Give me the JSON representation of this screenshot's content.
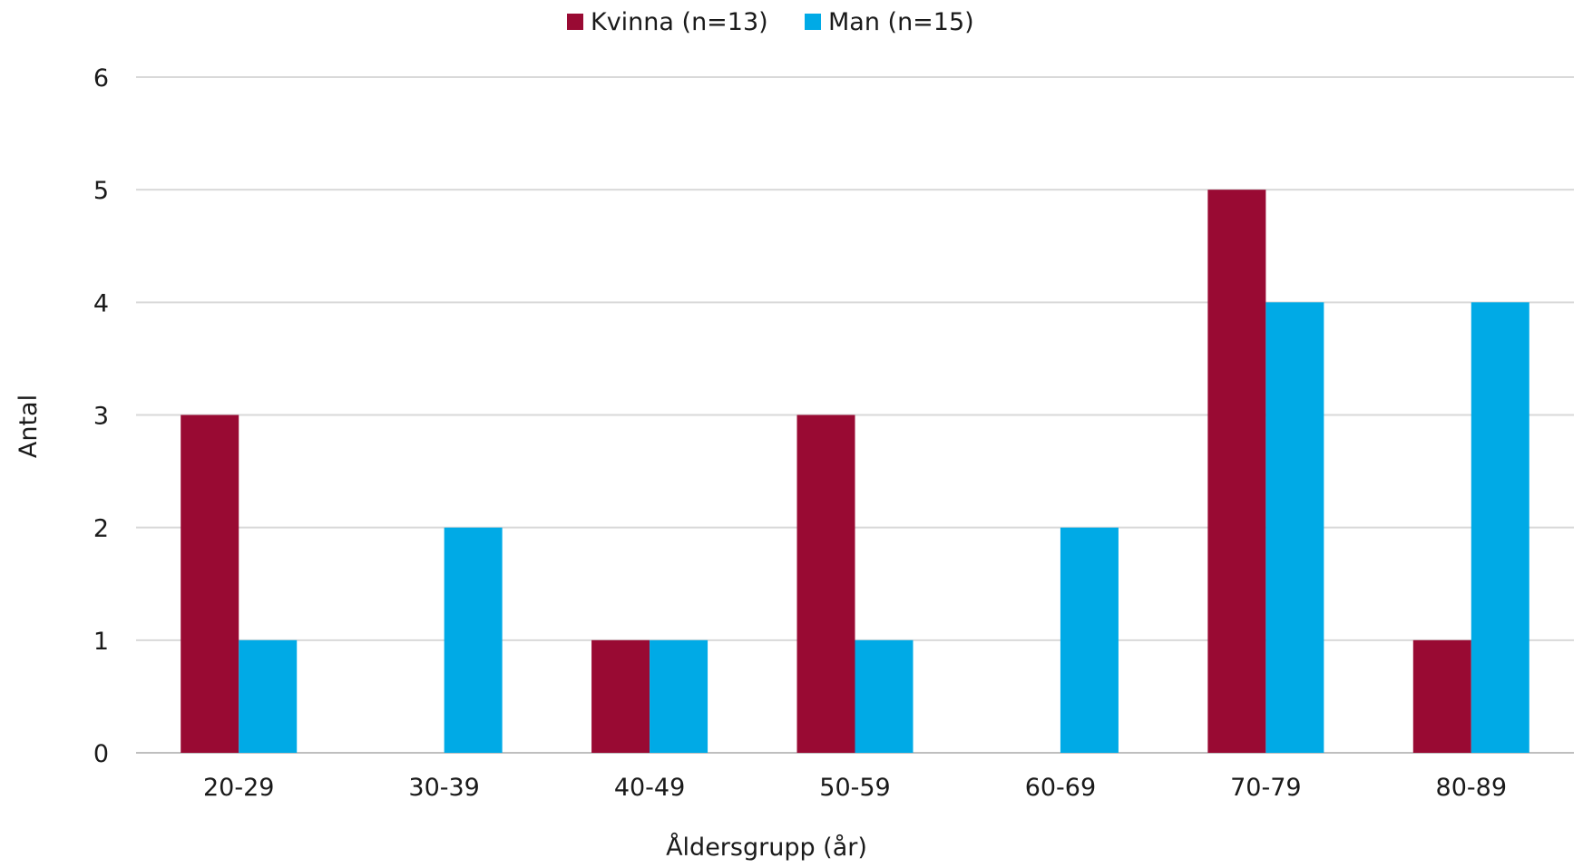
{
  "chart_data": {
    "type": "bar",
    "title": "",
    "xlabel": "Åldersgrupp (år)",
    "ylabel": "Antal",
    "categories": [
      "20-29",
      "30-39",
      "40-49",
      "50-59",
      "60-69",
      "70-79",
      "80-89"
    ],
    "series": [
      {
        "name": "Kvinna (n=13)",
        "color": "#990a33",
        "values": [
          3,
          0,
          1,
          3,
          0,
          5,
          1
        ]
      },
      {
        "name": "Man (n=15)",
        "color": "#00aae6",
        "values": [
          1,
          2,
          1,
          1,
          2,
          4,
          4
        ]
      }
    ],
    "ylim": [
      0,
      6
    ],
    "yticks": [
      "0",
      "1",
      "2",
      "3",
      "4",
      "5",
      "6"
    ],
    "grid": true,
    "legend_position": "top-center"
  },
  "colors": {
    "gridline": "#d9d9d9",
    "axis": "#bfbfbf"
  }
}
